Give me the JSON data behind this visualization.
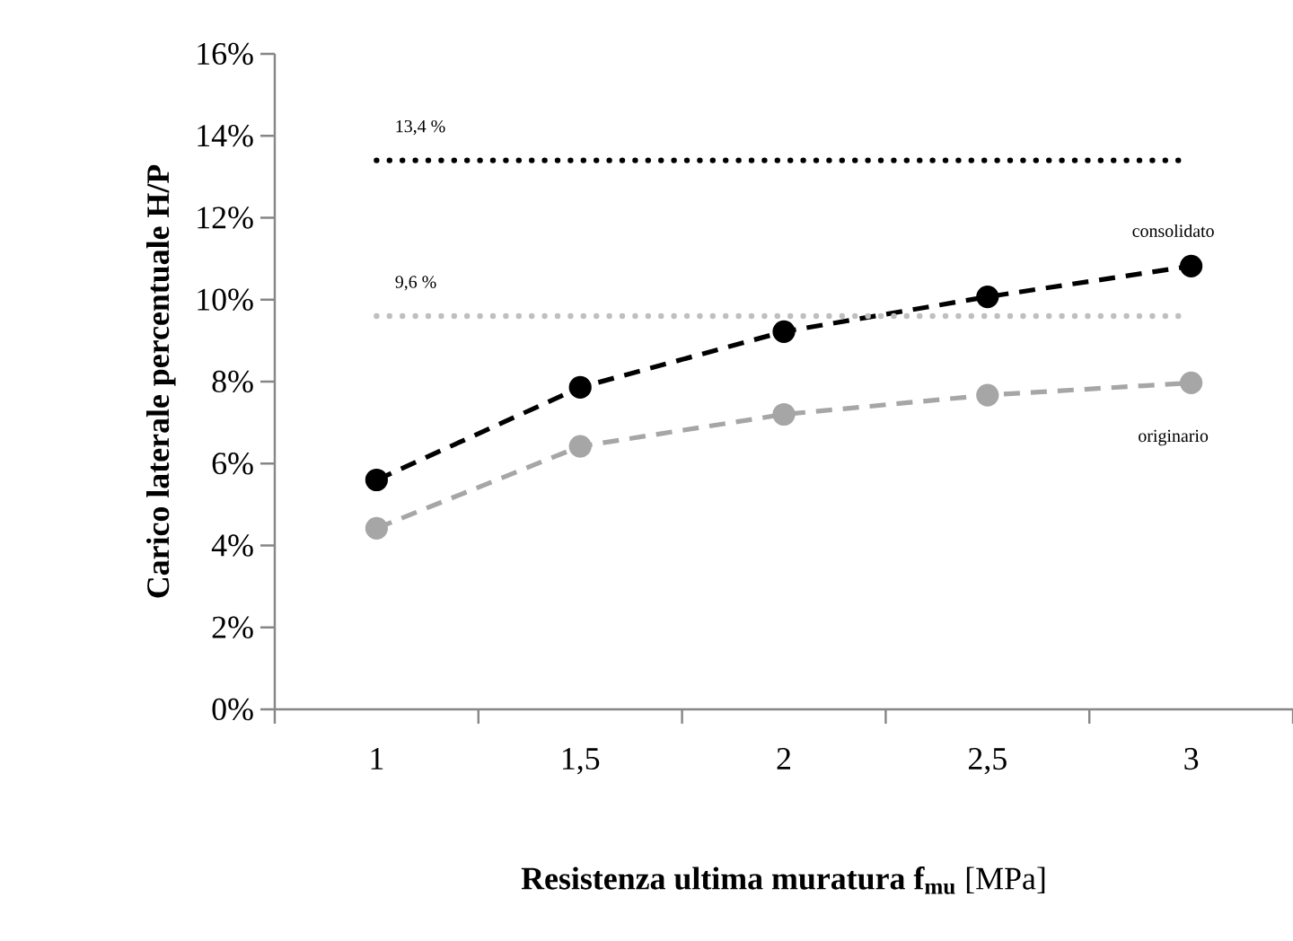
{
  "chart_data": {
    "type": "line",
    "xlabel": "**Resistenza ultima muratura f$_{mu}$** [MPa]",
    "ylabel": "Carico laterale percentuale H/P",
    "categories": [
      "1",
      "1,5",
      "2",
      "2,5",
      "3"
    ],
    "series": [
      {
        "name": "consolidato",
        "color": "#000000",
        "values": [
          5.6,
          7.86,
          9.22,
          10.07,
          10.82
        ]
      },
      {
        "name": "originario",
        "color": "#a6a6a6",
        "values": [
          4.42,
          6.42,
          7.2,
          7.67,
          7.97
        ]
      }
    ],
    "ylim": [
      0,
      16
    ],
    "yticks": [
      {
        "value": 0,
        "label": "0%"
      },
      {
        "value": 2,
        "label": "2%"
      },
      {
        "value": 4,
        "label": "4%"
      },
      {
        "value": 6,
        "label": "6%"
      },
      {
        "value": 8,
        "label": "8%"
      },
      {
        "value": 10,
        "label": "10%"
      },
      {
        "value": 12,
        "label": "12%"
      },
      {
        "value": 14,
        "label": "14%"
      },
      {
        "value": 16,
        "label": "16%"
      }
    ],
    "ref_lines": [
      {
        "axis": "y",
        "value": 13.4,
        "label": "13,4 %",
        "color": "#000000",
        "line_style": "dotted"
      },
      {
        "axis": "y",
        "value": 9.6,
        "label": "9,6 %",
        "color": "#bfbfbf",
        "line_style": "dotted"
      }
    ],
    "grid": false,
    "marker": "circle",
    "line_style": "dashed"
  }
}
